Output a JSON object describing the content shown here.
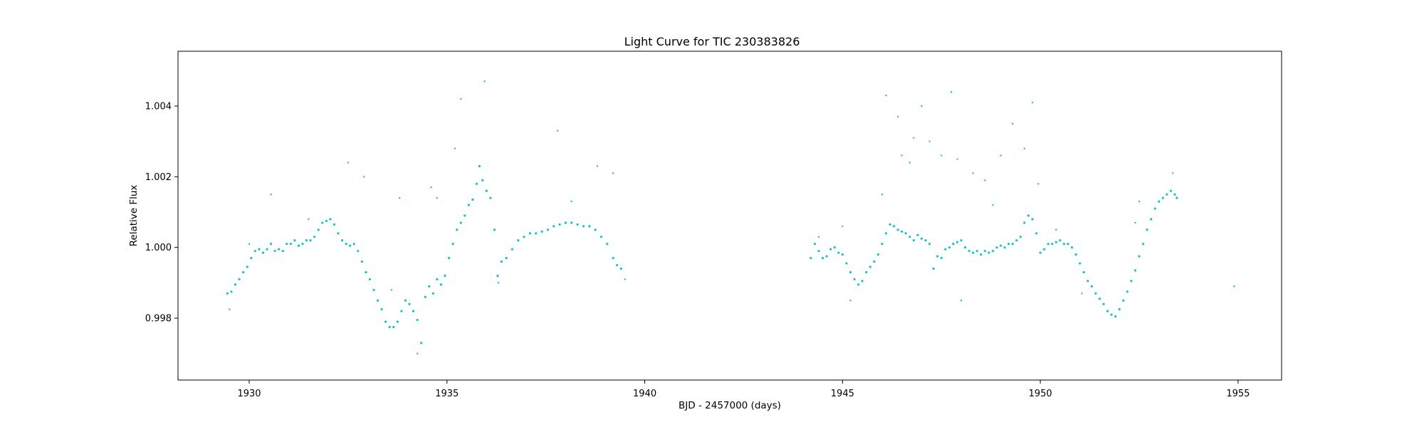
{
  "chart_data": {
    "type": "scatter",
    "title": "Light Curve for TIC 230383826",
    "xlabel": "BJD - 2457000 (days)",
    "ylabel": "Relative Flux",
    "xlim": [
      1928.2,
      1956.1
    ],
    "ylim": [
      0.99625,
      1.00555
    ],
    "xticks": [
      1930,
      1935,
      1940,
      1945,
      1950,
      1955
    ],
    "xtick_labels": [
      "1930",
      "1935",
      "1940",
      "1945",
      "1950",
      "1955"
    ],
    "yticks": [
      0.998,
      1.0,
      1.002,
      1.004
    ],
    "ytick_labels": [
      "0.998",
      "1.000",
      "1.002",
      "1.004"
    ],
    "grid": false,
    "marker_color": "#17becf",
    "marker_size": 1,
    "series": [
      {
        "points": [
          [
            1929.45,
            0.9987
          ],
          [
            1929.55,
            0.99875
          ],
          [
            1929.65,
            0.99895
          ],
          [
            1929.75,
            0.9991
          ],
          [
            1929.85,
            0.9993
          ],
          [
            1929.95,
            0.99945
          ],
          [
            1930.05,
            0.9997
          ],
          [
            1930.15,
            0.9999
          ],
          [
            1930.25,
            0.99995
          ],
          [
            1930.35,
            0.99985
          ],
          [
            1930.45,
            0.99995
          ],
          [
            1930.55,
            1.0001
          ],
          [
            1930.65,
            0.9999
          ],
          [
            1930.75,
            0.99995
          ],
          [
            1930.85,
            0.9999
          ],
          [
            1930.95,
            1.0001
          ],
          [
            1931.05,
            1.0001
          ],
          [
            1931.15,
            1.0002
          ],
          [
            1931.25,
            1.00005
          ],
          [
            1931.35,
            1.0001
          ],
          [
            1931.45,
            1.0002
          ],
          [
            1931.55,
            1.0002
          ],
          [
            1931.65,
            1.0003
          ],
          [
            1931.75,
            1.0005
          ],
          [
            1931.85,
            1.0007
          ],
          [
            1931.95,
            1.00075
          ],
          [
            1932.05,
            1.0008
          ],
          [
            1932.15,
            1.00065
          ],
          [
            1932.25,
            1.0004
          ],
          [
            1932.35,
            1.0002
          ],
          [
            1932.45,
            1.0001
          ],
          [
            1932.55,
            1.00005
          ],
          [
            1932.65,
            1.0001
          ],
          [
            1932.75,
            0.9999
          ],
          [
            1932.85,
            0.9996
          ],
          [
            1932.95,
            0.9993
          ],
          [
            1933.05,
            0.9991
          ],
          [
            1933.15,
            0.9988
          ],
          [
            1933.25,
            0.9985
          ],
          [
            1933.35,
            0.99825
          ],
          [
            1933.45,
            0.9979
          ],
          [
            1933.55,
            0.99775
          ],
          [
            1933.65,
            0.99775
          ],
          [
            1933.75,
            0.9979
          ],
          [
            1933.85,
            0.9982
          ],
          [
            1933.95,
            0.9985
          ],
          [
            1934.05,
            0.9984
          ],
          [
            1934.15,
            0.9982
          ],
          [
            1934.25,
            0.99795
          ],
          [
            1934.35,
            0.9973
          ],
          [
            1934.45,
            0.9986
          ],
          [
            1934.55,
            0.9989
          ],
          [
            1934.65,
            0.9987
          ],
          [
            1934.75,
            0.9991
          ],
          [
            1934.85,
            0.99895
          ],
          [
            1934.95,
            0.9992
          ],
          [
            1935.05,
            0.9997
          ],
          [
            1935.15,
            1.0001
          ],
          [
            1935.25,
            1.0005
          ],
          [
            1935.35,
            1.0007
          ],
          [
            1935.45,
            1.0009
          ],
          [
            1935.55,
            1.0012
          ],
          [
            1935.65,
            1.00135
          ],
          [
            1935.75,
            1.0018
          ],
          [
            1935.82,
            1.0023
          ],
          [
            1935.9,
            1.0019
          ],
          [
            1936.0,
            1.0016
          ],
          [
            1936.1,
            1.0014
          ],
          [
            1936.2,
            1.0005
          ],
          [
            1936.28,
            0.9992
          ],
          [
            1936.38,
            0.9996
          ],
          [
            1936.5,
            0.9997
          ],
          [
            1936.65,
            0.99995
          ],
          [
            1936.8,
            1.0002
          ],
          [
            1936.95,
            1.0003
          ],
          [
            1937.1,
            1.0004
          ],
          [
            1937.25,
            1.0004
          ],
          [
            1937.4,
            1.00045
          ],
          [
            1937.55,
            1.0005
          ],
          [
            1937.7,
            1.0006
          ],
          [
            1937.85,
            1.00065
          ],
          [
            1938.0,
            1.0007
          ],
          [
            1938.15,
            1.0007
          ],
          [
            1938.3,
            1.00065
          ],
          [
            1938.45,
            1.0006
          ],
          [
            1938.6,
            1.0006
          ],
          [
            1938.75,
            1.0005
          ],
          [
            1938.9,
            1.0003
          ],
          [
            1939.05,
            1.0001
          ],
          [
            1939.2,
            0.9997
          ],
          [
            1939.3,
            0.9995
          ],
          [
            1939.4,
            0.9994
          ],
          [
            1944.2,
            0.9997
          ],
          [
            1944.3,
            1.0001
          ],
          [
            1944.4,
            0.9999
          ],
          [
            1944.5,
            0.9997
          ],
          [
            1944.6,
            0.99975
          ],
          [
            1944.7,
            0.99995
          ],
          [
            1944.8,
            1.0
          ],
          [
            1944.9,
            0.99985
          ],
          [
            1945.0,
            0.9998
          ],
          [
            1945.1,
            0.99955
          ],
          [
            1945.2,
            0.9993
          ],
          [
            1945.3,
            0.9991
          ],
          [
            1945.4,
            0.99895
          ],
          [
            1945.5,
            0.99905
          ],
          [
            1945.6,
            0.9993
          ],
          [
            1945.7,
            0.99945
          ],
          [
            1945.8,
            0.9996
          ],
          [
            1945.9,
            0.9998
          ],
          [
            1946.0,
            1.0001
          ],
          [
            1946.1,
            1.0004
          ],
          [
            1946.2,
            1.00065
          ],
          [
            1946.3,
            1.0006
          ],
          [
            1946.4,
            1.0005
          ],
          [
            1946.5,
            1.00045
          ],
          [
            1946.6,
            1.0004
          ],
          [
            1946.7,
            1.0003
          ],
          [
            1946.8,
            1.0002
          ],
          [
            1946.9,
            1.00035
          ],
          [
            1947.0,
            1.00025
          ],
          [
            1947.1,
            1.0002
          ],
          [
            1947.2,
            1.0001
          ],
          [
            1947.3,
            0.9994
          ],
          [
            1947.4,
            0.99975
          ],
          [
            1947.5,
            0.9997
          ],
          [
            1947.6,
            0.99995
          ],
          [
            1947.7,
            1.0
          ],
          [
            1947.8,
            1.0001
          ],
          [
            1947.9,
            1.00015
          ],
          [
            1948.0,
            1.0002
          ],
          [
            1948.1,
            1.0
          ],
          [
            1948.2,
            0.9999
          ],
          [
            1948.3,
            0.99985
          ],
          [
            1948.4,
            0.9999
          ],
          [
            1948.5,
            0.9998
          ],
          [
            1948.6,
            0.9999
          ],
          [
            1948.7,
            0.99985
          ],
          [
            1948.8,
            0.9999
          ],
          [
            1948.9,
            1.0
          ],
          [
            1949.0,
            1.00005
          ],
          [
            1949.1,
            1.0
          ],
          [
            1949.2,
            1.0001
          ],
          [
            1949.3,
            1.0001
          ],
          [
            1949.4,
            1.0002
          ],
          [
            1949.5,
            1.0003
          ],
          [
            1949.6,
            1.0007
          ],
          [
            1949.7,
            1.0009
          ],
          [
            1949.8,
            1.0008
          ],
          [
            1949.9,
            1.0004
          ],
          [
            1950.0,
            0.99985
          ],
          [
            1950.1,
            0.99995
          ],
          [
            1950.2,
            1.0001
          ],
          [
            1950.3,
            1.0001
          ],
          [
            1950.4,
            1.00015
          ],
          [
            1950.5,
            1.0002
          ],
          [
            1950.6,
            1.0001
          ],
          [
            1950.7,
            1.0001
          ],
          [
            1950.8,
            1.0
          ],
          [
            1950.9,
            0.9998
          ],
          [
            1951.0,
            0.99955
          ],
          [
            1951.1,
            0.9993
          ],
          [
            1951.2,
            0.99905
          ],
          [
            1951.3,
            0.9989
          ],
          [
            1951.4,
            0.9987
          ],
          [
            1951.5,
            0.99855
          ],
          [
            1951.6,
            0.9984
          ],
          [
            1951.7,
            0.9982
          ],
          [
            1951.8,
            0.9981
          ],
          [
            1951.9,
            0.99805
          ],
          [
            1952.0,
            0.99825
          ],
          [
            1952.1,
            0.9985
          ],
          [
            1952.2,
            0.99875
          ],
          [
            1952.3,
            0.99905
          ],
          [
            1952.4,
            0.99935
          ],
          [
            1952.5,
            0.99975
          ],
          [
            1952.6,
            1.0001
          ],
          [
            1952.7,
            1.0005
          ],
          [
            1952.8,
            1.0008
          ],
          [
            1952.9,
            1.0011
          ],
          [
            1953.0,
            1.0013
          ],
          [
            1953.1,
            1.0014
          ],
          [
            1953.2,
            1.0015
          ],
          [
            1953.3,
            1.0016
          ],
          [
            1953.4,
            1.0015
          ],
          [
            1953.45,
            1.0014
          ]
        ]
      }
    ],
    "outliers": [
      [
        1929.5,
        0.99825
      ],
      [
        1930.0,
        1.0001
      ],
      [
        1930.55,
        1.0015
      ],
      [
        1931.5,
        1.0008
      ],
      [
        1932.5,
        1.0024
      ],
      [
        1932.9,
        1.002
      ],
      [
        1933.6,
        0.9988
      ],
      [
        1933.8,
        1.0014
      ],
      [
        1934.25,
        0.997
      ],
      [
        1934.6,
        1.0017
      ],
      [
        1934.75,
        1.0014
      ],
      [
        1935.2,
        1.0028
      ],
      [
        1935.35,
        1.0042
      ],
      [
        1935.95,
        1.0047
      ],
      [
        1936.3,
        0.999
      ],
      [
        1937.8,
        1.0033
      ],
      [
        1938.15,
        1.0013
      ],
      [
        1938.8,
        1.0023
      ],
      [
        1939.2,
        1.0021
      ],
      [
        1939.5,
        0.9991
      ],
      [
        1944.4,
        1.0003
      ],
      [
        1945.0,
        1.0006
      ],
      [
        1945.2,
        0.9985
      ],
      [
        1946.0,
        1.0015
      ],
      [
        1946.1,
        1.0043
      ],
      [
        1946.4,
        1.0037
      ],
      [
        1946.5,
        1.0026
      ],
      [
        1946.7,
        1.0024
      ],
      [
        1946.8,
        1.0031
      ],
      [
        1947.0,
        1.004
      ],
      [
        1947.2,
        1.003
      ],
      [
        1947.5,
        1.0026
      ],
      [
        1947.75,
        1.0044
      ],
      [
        1947.9,
        1.0025
      ],
      [
        1948.0,
        0.9985
      ],
      [
        1948.3,
        1.0021
      ],
      [
        1948.6,
        1.0019
      ],
      [
        1948.8,
        1.0012
      ],
      [
        1949.0,
        1.0026
      ],
      [
        1949.3,
        1.0035
      ],
      [
        1949.6,
        1.0028
      ],
      [
        1949.8,
        1.0041
      ],
      [
        1949.95,
        1.0018
      ],
      [
        1950.4,
        1.0005
      ],
      [
        1951.05,
        0.9987
      ],
      [
        1952.4,
        1.0007
      ],
      [
        1952.5,
        1.0013
      ],
      [
        1953.35,
        1.0021
      ],
      [
        1954.9,
        0.9989
      ]
    ]
  }
}
